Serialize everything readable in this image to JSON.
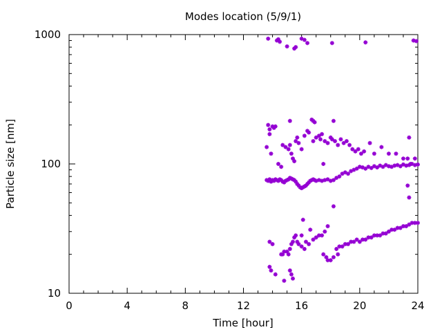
{
  "chart_data": {
    "type": "scatter",
    "title": "Modes location (5/9/1)",
    "xlabel": "Time [hour]",
    "ylabel": "Particle size [nm]",
    "xlim": [
      0,
      24
    ],
    "ylim": [
      10,
      1000
    ],
    "y_scale": "log",
    "x_ticks": [
      0,
      4,
      8,
      12,
      16,
      20,
      24
    ],
    "x_tick_labels": [
      "0",
      "4",
      "8",
      "12",
      "16",
      "20",
      "24"
    ],
    "y_ticks": [
      10,
      100,
      1000
    ],
    "y_tick_labels": [
      "10",
      "100",
      "1000"
    ],
    "grid": false,
    "marker_color": "#9400d3",
    "series": [
      {
        "points": [
          [
            13.7,
            930
          ],
          [
            14.3,
            900
          ],
          [
            14.4,
            920
          ],
          [
            14.5,
            880
          ],
          [
            15.0,
            810
          ],
          [
            15.5,
            780
          ],
          [
            15.6,
            800
          ],
          [
            16.0,
            930
          ],
          [
            16.2,
            910
          ],
          [
            16.4,
            860
          ],
          [
            18.1,
            860
          ],
          [
            20.4,
            870
          ],
          [
            23.7,
            900
          ],
          [
            23.9,
            890
          ],
          [
            13.6,
            135
          ],
          [
            13.7,
            200
          ],
          [
            13.8,
            185
          ],
          [
            13.9,
            120
          ],
          [
            14.0,
            195
          ],
          [
            14.1,
            190
          ],
          [
            14.2,
            195
          ],
          [
            14.4,
            100
          ],
          [
            14.6,
            95
          ],
          [
            14.7,
            140
          ],
          [
            14.9,
            135
          ],
          [
            15.1,
            130
          ],
          [
            15.2,
            140
          ],
          [
            15.3,
            120
          ],
          [
            15.4,
            110
          ],
          [
            15.5,
            105
          ],
          [
            15.6,
            150
          ],
          [
            15.7,
            160
          ],
          [
            15.8,
            145
          ],
          [
            16.0,
            130
          ],
          [
            16.2,
            165
          ],
          [
            16.4,
            180
          ],
          [
            16.5,
            175
          ],
          [
            16.7,
            220
          ],
          [
            16.9,
            210
          ],
          [
            16.8,
            150
          ],
          [
            17.0,
            160
          ],
          [
            17.2,
            165
          ],
          [
            17.3,
            155
          ],
          [
            17.4,
            170
          ],
          [
            17.6,
            150
          ],
          [
            17.8,
            145
          ],
          [
            18.0,
            160
          ],
          [
            18.1,
            155
          ],
          [
            18.3,
            150
          ],
          [
            18.5,
            140
          ],
          [
            18.7,
            155
          ],
          [
            18.9,
            145
          ],
          [
            19.1,
            150
          ],
          [
            19.3,
            140
          ],
          [
            19.5,
            130
          ],
          [
            19.7,
            125
          ],
          [
            19.9,
            130
          ],
          [
            20.1,
            120
          ],
          [
            20.3,
            125
          ],
          [
            20.7,
            145
          ],
          [
            21.0,
            120
          ],
          [
            21.5,
            135
          ],
          [
            22.0,
            120
          ],
          [
            22.5,
            120
          ],
          [
            23.0,
            110
          ],
          [
            23.3,
            110
          ],
          [
            23.5,
            100
          ],
          [
            23.8,
            110
          ],
          [
            15.2,
            215
          ],
          [
            16.8,
            215
          ],
          [
            18.2,
            215
          ],
          [
            23.4,
            160
          ],
          [
            13.8,
            170
          ],
          [
            13.6,
            75
          ],
          [
            13.7,
            74
          ],
          [
            13.8,
            76
          ],
          [
            13.9,
            73
          ],
          [
            14.0,
            75
          ],
          [
            14.1,
            74
          ],
          [
            14.2,
            76
          ],
          [
            14.3,
            75
          ],
          [
            14.4,
            74
          ],
          [
            14.5,
            76
          ],
          [
            14.6,
            75
          ],
          [
            14.7,
            73
          ],
          [
            14.8,
            72
          ],
          [
            14.9,
            74
          ],
          [
            15.0,
            75
          ],
          [
            15.1,
            76
          ],
          [
            15.2,
            78
          ],
          [
            15.3,
            77
          ],
          [
            15.4,
            76
          ],
          [
            15.5,
            75
          ],
          [
            15.6,
            73
          ],
          [
            15.7,
            70
          ],
          [
            15.8,
            68
          ],
          [
            15.9,
            66
          ],
          [
            16.0,
            65
          ],
          [
            16.1,
            66
          ],
          [
            16.2,
            67
          ],
          [
            16.3,
            68
          ],
          [
            16.4,
            70
          ],
          [
            16.5,
            72
          ],
          [
            16.6,
            74
          ],
          [
            16.7,
            75
          ],
          [
            16.8,
            76
          ],
          [
            16.9,
            75
          ],
          [
            17.0,
            74
          ],
          [
            17.2,
            75
          ],
          [
            17.4,
            74
          ],
          [
            17.6,
            75
          ],
          [
            17.8,
            76
          ],
          [
            18.0,
            74
          ],
          [
            18.2,
            75
          ],
          [
            18.4,
            78
          ],
          [
            18.6,
            80
          ],
          [
            18.8,
            84
          ],
          [
            19.0,
            86
          ],
          [
            19.2,
            84
          ],
          [
            19.4,
            88
          ],
          [
            19.6,
            90
          ],
          [
            19.8,
            92
          ],
          [
            20.0,
            95
          ],
          [
            20.2,
            94
          ],
          [
            20.4,
            92
          ],
          [
            20.6,
            95
          ],
          [
            20.8,
            93
          ],
          [
            21.0,
            96
          ],
          [
            21.2,
            94
          ],
          [
            21.4,
            97
          ],
          [
            21.6,
            95
          ],
          [
            21.8,
            98
          ],
          [
            22.0,
            96
          ],
          [
            22.2,
            95
          ],
          [
            22.4,
            97
          ],
          [
            22.6,
            98
          ],
          [
            22.8,
            96
          ],
          [
            23.0,
            99
          ],
          [
            23.2,
            97
          ],
          [
            23.4,
            98
          ],
          [
            23.6,
            100
          ],
          [
            23.8,
            98
          ],
          [
            24.0,
            99
          ],
          [
            16.0,
            65
          ],
          [
            17.5,
            100
          ],
          [
            23.3,
            68
          ],
          [
            13.8,
            25
          ],
          [
            14.0,
            24
          ],
          [
            13.8,
            16
          ],
          [
            13.9,
            15
          ],
          [
            14.2,
            14
          ],
          [
            14.8,
            12.5
          ],
          [
            14.6,
            20
          ],
          [
            14.7,
            20
          ],
          [
            14.8,
            21
          ],
          [
            15.0,
            21
          ],
          [
            15.1,
            20
          ],
          [
            15.2,
            22
          ],
          [
            15.3,
            24
          ],
          [
            15.4,
            25
          ],
          [
            15.5,
            27
          ],
          [
            15.6,
            28
          ],
          [
            15.7,
            25
          ],
          [
            15.8,
            24
          ],
          [
            16.0,
            23
          ],
          [
            16.2,
            22
          ],
          [
            16.3,
            25
          ],
          [
            16.5,
            24
          ],
          [
            16.8,
            26
          ],
          [
            17.0,
            27
          ],
          [
            17.2,
            28
          ],
          [
            17.4,
            28
          ],
          [
            17.6,
            30
          ],
          [
            17.8,
            33
          ],
          [
            17.5,
            20
          ],
          [
            17.7,
            19
          ],
          [
            17.8,
            18
          ],
          [
            18.0,
            18
          ],
          [
            18.2,
            19
          ],
          [
            18.4,
            22
          ],
          [
            18.6,
            23
          ],
          [
            18.8,
            23
          ],
          [
            19.0,
            24
          ],
          [
            19.2,
            24
          ],
          [
            19.4,
            25
          ],
          [
            19.6,
            25
          ],
          [
            19.8,
            26
          ],
          [
            20.0,
            25
          ],
          [
            20.2,
            26
          ],
          [
            20.4,
            26
          ],
          [
            20.6,
            27
          ],
          [
            20.8,
            27
          ],
          [
            21.0,
            28
          ],
          [
            21.2,
            28
          ],
          [
            21.4,
            28
          ],
          [
            21.6,
            29
          ],
          [
            21.8,
            29
          ],
          [
            22.0,
            30
          ],
          [
            22.2,
            31
          ],
          [
            22.4,
            31
          ],
          [
            22.6,
            32
          ],
          [
            22.8,
            32
          ],
          [
            23.0,
            33
          ],
          [
            23.2,
            33
          ],
          [
            23.4,
            34
          ],
          [
            23.6,
            35
          ],
          [
            23.8,
            35
          ],
          [
            24.0,
            35
          ],
          [
            15.2,
            15
          ],
          [
            15.3,
            14
          ],
          [
            15.4,
            13
          ],
          [
            16.1,
            37
          ],
          [
            18.2,
            47
          ],
          [
            23.4,
            55
          ],
          [
            16.6,
            31
          ],
          [
            18.5,
            20
          ],
          [
            16.0,
            28
          ]
        ]
      }
    ]
  }
}
